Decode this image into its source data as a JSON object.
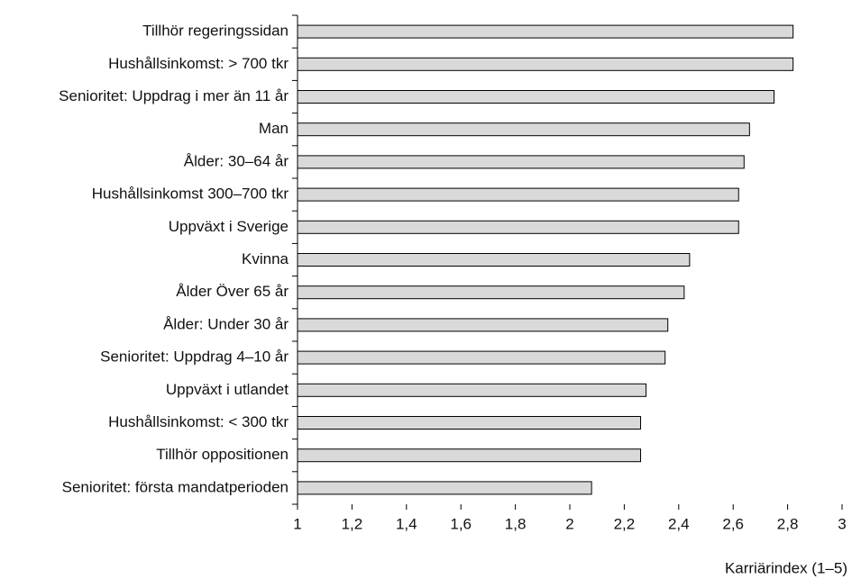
{
  "chart_data": {
    "type": "bar",
    "orientation": "horizontal",
    "categories": [
      "Tillhör regeringssidan",
      "Hushållsinkomst: > 700 tkr",
      "Senioritet: Uppdrag i mer än 11 år",
      "Man",
      "Ålder: 30–64 år",
      "Hushållsinkomst 300–700 tkr",
      "Uppväxt i Sverige",
      "Kvinna",
      "Ålder Över 65 år",
      "Ålder: Under 30 år",
      "Senioritet: Uppdrag 4–10 år",
      "Uppväxt i utlandet",
      "Hushållsinkomst: < 300 tkr",
      "Tillhör oppositionen",
      "Senioritet: första mandatperioden"
    ],
    "values": [
      2.82,
      2.82,
      2.75,
      2.66,
      2.64,
      2.62,
      2.62,
      2.44,
      2.42,
      2.36,
      2.35,
      2.28,
      2.26,
      2.26,
      2.08
    ],
    "color": "#d9d9d9",
    "xlabel": "Karriärindex (1–5)",
    "xlim": [
      1,
      3
    ],
    "xticks": [
      1,
      {
        "value": 1.2,
        "label": "1,2"
      },
      {
        "value": 1.4,
        "label": "1,4"
      },
      {
        "value": 1.6,
        "label": "1,6"
      },
      {
        "value": 1.8,
        "label": "1,8"
      },
      2,
      {
        "value": 2.2,
        "label": "2,2"
      },
      {
        "value": 2.4,
        "label": "2,4"
      },
      {
        "value": 2.6,
        "label": "2,6"
      },
      {
        "value": 2.8,
        "label": "2,8"
      },
      3
    ],
    "grid": false
  }
}
